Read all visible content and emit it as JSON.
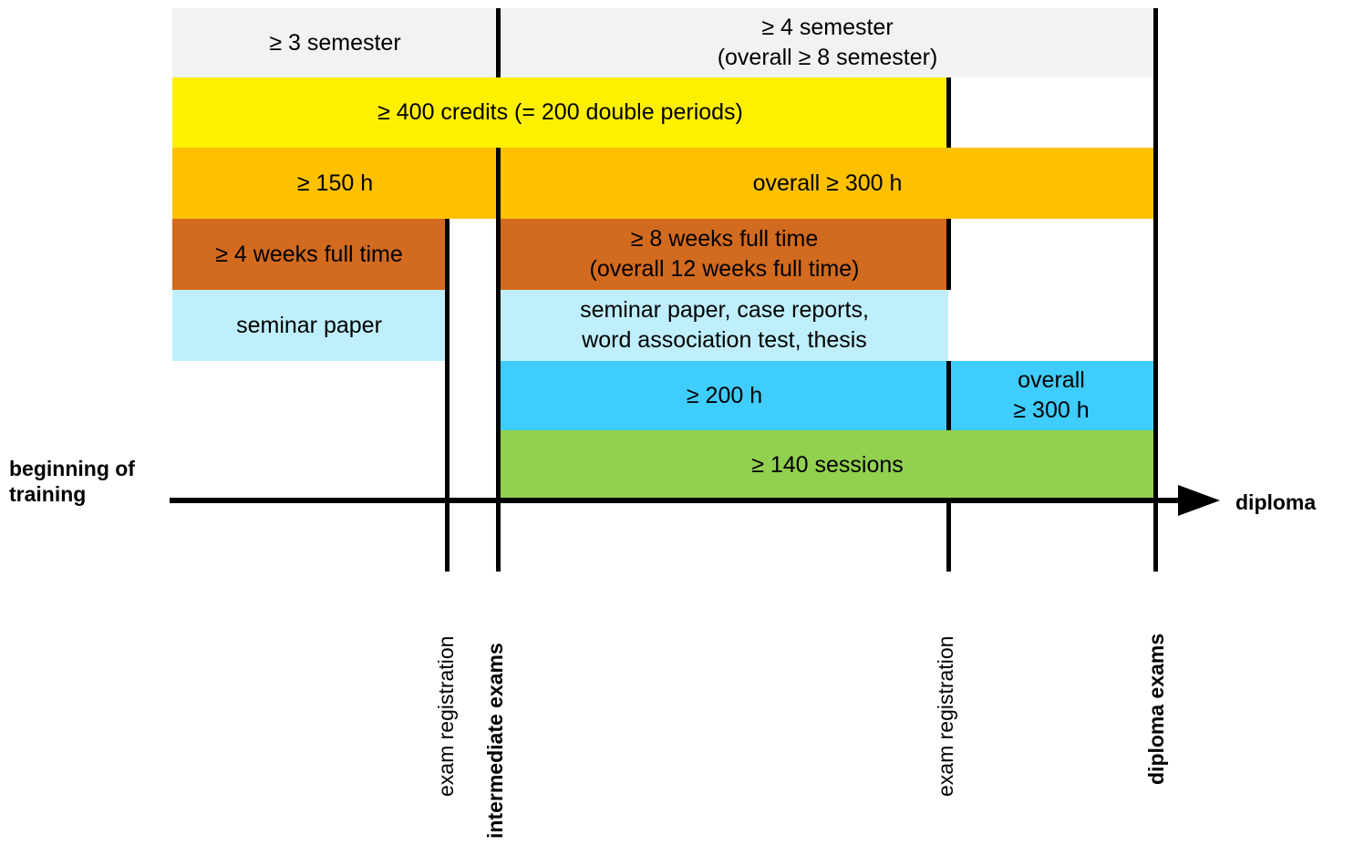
{
  "colors": {
    "semester_bg": "#f2f2f2",
    "credits_bg": "#fff000",
    "hours_bg": "#ffc000",
    "weeks_bg": "#d26a1f",
    "papers_bg": "#bfeffd",
    "sessions_hours_bg": "#3fcdfd",
    "sessions_bg": "#92d050",
    "line": "#000000"
  },
  "blocks": {
    "semester_1": "≥ 3 semester",
    "semester_2": "≥ 4 semester\n(overall ≥ 8 semester)",
    "credits": "≥ 400 credits (= 200 double periods)",
    "hours_1": "≥ 150 h",
    "hours_2": "overall ≥ 300 h",
    "weeks_1": "≥ 4 weeks full time",
    "weeks_2": "≥ 8 weeks full time\n(overall 12 weeks full time)",
    "paper_1": "seminar paper",
    "paper_2": "seminar paper, case reports,\nword association test, thesis",
    "hours_3": "≥ 200 h",
    "hours_4": "overall\n≥ 300 h",
    "sessions": "≥ 140 sessions"
  },
  "timeline": {
    "start_label": "beginning of\ntraining",
    "end_label": "diploma"
  },
  "milestones": {
    "exam_registration_1": "exam registration",
    "intermediate_exams": "intermediate exams",
    "exam_registration_2": "exam registration",
    "diploma_exams": "diploma exams"
  }
}
